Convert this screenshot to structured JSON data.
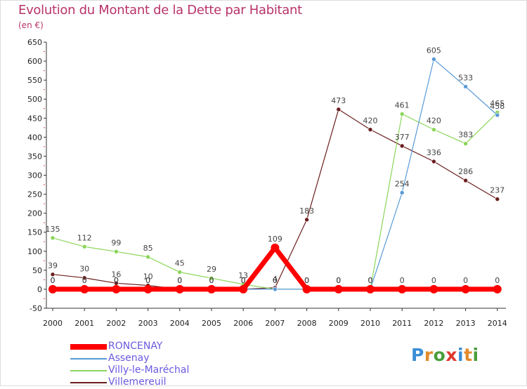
{
  "title": "Evolution du Montant de la Dette par Habitant",
  "subtitle": "(en €)",
  "logo": {
    "text": "Proxiti",
    "letter_colors": [
      "#3b8ed6",
      "#e38b2c",
      "#4a9e3a",
      "#e0382f",
      "#3b8ed6",
      "#e38b2c",
      "#4a9e3a"
    ]
  },
  "chart_data": {
    "type": "line",
    "x": [
      "2000",
      "2001",
      "2002",
      "2003",
      "2004",
      "2005",
      "2006",
      "2007",
      "2008",
      "2009",
      "2010",
      "2011",
      "2012",
      "2013",
      "2014"
    ],
    "ylim": [
      -50,
      650
    ],
    "yticks": [
      -50,
      0,
      50,
      100,
      150,
      200,
      250,
      300,
      350,
      400,
      450,
      500,
      550,
      600,
      650
    ],
    "grid": false,
    "legend_position": "bottom-left",
    "series": [
      {
        "name": "Villemereuil",
        "color": "#6b1e1e",
        "values": [
          39,
          30,
          16,
          10,
          0,
          0,
          0,
          4,
          183,
          473,
          420,
          377,
          336,
          286,
          237
        ]
      },
      {
        "name": "Villy-le-Maréchal",
        "color": "#8bd65a",
        "values": [
          135,
          112,
          99,
          85,
          45,
          29,
          13,
          0,
          0,
          0,
          0,
          461,
          420,
          383,
          465
        ]
      },
      {
        "name": "Assenay",
        "color": "#5a9ad6",
        "values": [
          0,
          0,
          0,
          0,
          0,
          0,
          0,
          0,
          0,
          0,
          0,
          254,
          605,
          533,
          458
        ]
      },
      {
        "name": "RONCENAY",
        "color": "#ff0000",
        "values": [
          0,
          0,
          0,
          0,
          0,
          0,
          0,
          109,
          0,
          0,
          0,
          0,
          0,
          0,
          0
        ]
      }
    ],
    "legend_order": [
      "RONCENAY",
      "Assenay",
      "Villy-le-Maréchal",
      "Villemereuil"
    ]
  }
}
